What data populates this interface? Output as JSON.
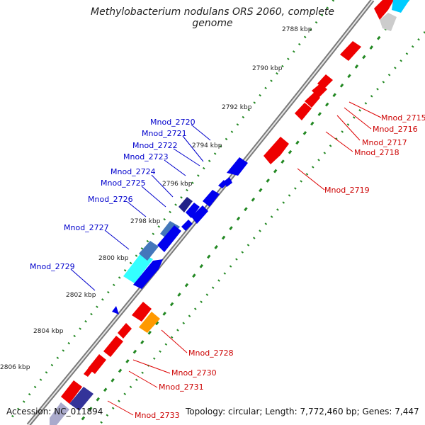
{
  "title": "Methylobacterium nodulans ORS 2060, complete genome",
  "footer": {
    "accession": "Accession: NC_011894",
    "summary": "Topology: circular; Length: 7,772,460 bp; Genes: 7,447"
  },
  "ticks": [
    "2788 kbp",
    "2790 kbp",
    "2792 kbp",
    "2794 kbp",
    "2796 kbp",
    "2798 kbp",
    "2800 kbp",
    "2802 kbp",
    "2804 kbp",
    "2806 kbp"
  ],
  "labels_right": [
    "Mnod_2715",
    "Mnod_2716",
    "Mnod_2717",
    "Mnod_2718",
    "Mnod_2719",
    "Mnod_2728",
    "Mnod_2730",
    "Mnod_2731",
    "Mnod_2733"
  ],
  "labels_left": [
    "Mnod_2720",
    "Mnod_2721",
    "Mnod_2722",
    "Mnod_2723",
    "Mnod_2724",
    "Mnod_2725",
    "Mnod_2726",
    "Mnod_2727",
    "Mnod_2729"
  ],
  "colors": {
    "forward_cds": "#ee0000",
    "reverse_cds": "#0000ee",
    "orange_feature": "#ff9900",
    "cyan_feature": "#33ffff",
    "steelblue_feature": "#4477bb",
    "navy_feature": "#222288",
    "gray_feature": "#cccccc",
    "dots_tick": "#228822",
    "backbone": "#8a8a8a"
  }
}
